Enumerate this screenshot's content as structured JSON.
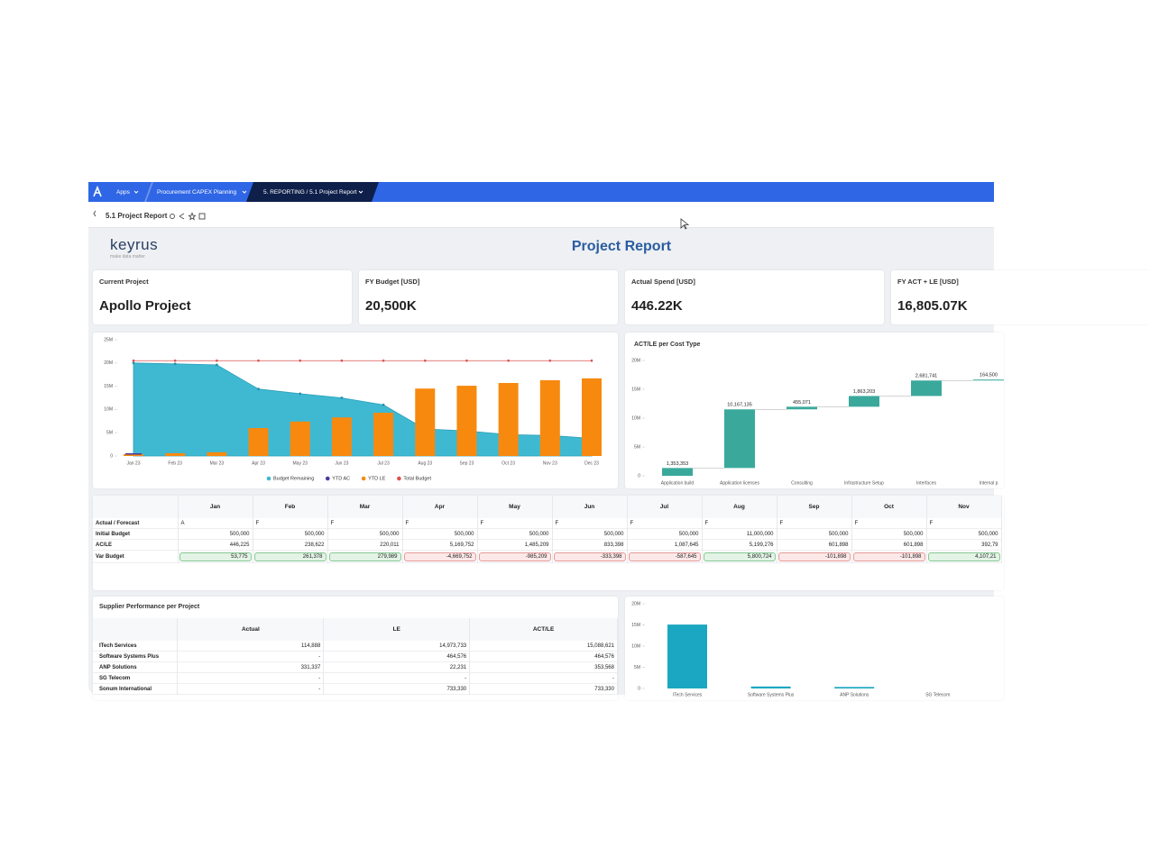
{
  "nav": {
    "items": [
      "Apps",
      "Procurement CAPEX Planning",
      "5. REPORTING / 5.1 Project Report"
    ]
  },
  "toolbar": {
    "title": "5.1 Project Report"
  },
  "header": {
    "logo": "keyrus",
    "tagline": "make data matter",
    "title": "Project Report"
  },
  "kpis": [
    {
      "label": "Current Project",
      "value": "Apollo Project"
    },
    {
      "label": "FY Budget [USD]",
      "value": "20,500K"
    },
    {
      "label": "Actual Spend [USD]",
      "value": "446.22K"
    },
    {
      "label": "FY ACT + LE [USD]",
      "value": "16,805.07K"
    }
  ],
  "budget_chart": {
    "type": "combo",
    "categories": [
      "Jan 23",
      "Feb 23",
      "Mar 23",
      "Apr 23",
      "May 23",
      "Jun 23",
      "Jul 23",
      "Aug 23",
      "Sep 23",
      "Oct 23",
      "Nov 23",
      "Dec 23"
    ],
    "series": [
      {
        "name": "Budget Remaining",
        "kind": "area",
        "color": "#3fb9d2",
        "values": [
          20000000,
          19800000,
          19600000,
          14400000,
          13400000,
          12500000,
          11000000,
          5800000,
          5400000,
          4600000,
          4400000,
          3800000
        ]
      },
      {
        "name": "YTD AC",
        "kind": "line",
        "color": "#4a3aa0",
        "values": [
          446225,
          null,
          null,
          null,
          null,
          null,
          null,
          null,
          null,
          null,
          null,
          null
        ]
      },
      {
        "name": "YTD LE",
        "kind": "bar",
        "color": "#f7890f",
        "values": [
          400000,
          600000,
          800000,
          6000000,
          7400000,
          8300000,
          9300000,
          14500000,
          15100000,
          15700000,
          16300000,
          16700000
        ]
      },
      {
        "name": "Total Budget",
        "kind": "line",
        "color": "#d9534f",
        "values": [
          20500000,
          20500000,
          20500000,
          20500000,
          20500000,
          20500000,
          20500000,
          20500000,
          20500000,
          20500000,
          20500000,
          20500000
        ]
      }
    ],
    "ylim": [
      0,
      25000000
    ],
    "yticks": [
      0,
      {
        "value": 5000000,
        "label": "5M"
      },
      {
        "value": 10000000,
        "label": "10M"
      },
      {
        "value": 15000000,
        "label": "15M"
      },
      {
        "value": 20000000,
        "label": "20M"
      },
      {
        "value": 25000000,
        "label": "25M"
      }
    ]
  },
  "cost_type_chart": {
    "type": "waterfall",
    "title": "ACT/LE per Cost Type",
    "color": "#3aa99b",
    "categories": [
      "Application build",
      "Application licenses",
      "Consulting",
      "Infrastructure Setup",
      "Interfaces",
      "Internal p"
    ],
    "values": [
      1353353,
      10167135,
      455071,
      1863203,
      2681741,
      164500
    ],
    "value_labels": [
      "1,353,353",
      "10,167,135",
      "455,071",
      "1,863,203",
      "2,681,741",
      "164,500"
    ],
    "ylim": [
      0,
      20000000
    ],
    "yticks": [
      0,
      {
        "value": 5000000,
        "label": "5M"
      },
      {
        "value": 10000000,
        "label": "10M"
      },
      {
        "value": 15000000,
        "label": "15M"
      },
      {
        "value": 20000000,
        "label": "20M"
      }
    ]
  },
  "variance_table": {
    "columns": [
      "Jan",
      "Feb",
      "Mar",
      "Apr",
      "May",
      "Jun",
      "Jul",
      "Aug",
      "Sep",
      "Oct",
      "Nov"
    ],
    "rows": [
      {
        "label": "Actual / Forecast",
        "cells": [
          "A",
          "F",
          "F",
          "F",
          "F",
          "F",
          "F",
          "F",
          "F",
          "F",
          "F"
        ]
      },
      {
        "label": "Initial Budget",
        "cells": [
          "500,000",
          "500,000",
          "500,000",
          "500,000",
          "500,000",
          "500,000",
          "500,000",
          "11,000,000",
          "500,000",
          "500,000",
          "500,000"
        ]
      },
      {
        "label": "AC/LE",
        "cells": [
          "446,225",
          "238,622",
          "220,011",
          "5,169,752",
          "1,485,209",
          "833,398",
          "1,087,645",
          "5,199,276",
          "601,898",
          "601,898",
          "392,79"
        ]
      },
      {
        "label": "Var Budget",
        "cells": [
          "53,775",
          "261,378",
          "279,989",
          "-4,669,752",
          "-985,209",
          "-333,398",
          "-587,645",
          "5,800,724",
          "-101,898",
          "-101,898",
          "4,107,21"
        ]
      }
    ]
  },
  "supplier_table": {
    "title": "Supplier Performance per Project",
    "columns": [
      "Actual",
      "LE",
      "ACT/LE"
    ],
    "rows": [
      {
        "label": "ITech Services",
        "cells": [
          "114,888",
          "14,973,733",
          "15,088,621"
        ]
      },
      {
        "label": "Software Systems Plus",
        "cells": [
          "-",
          "464,576",
          "464,576"
        ]
      },
      {
        "label": "ANP Solutions",
        "cells": [
          "331,337",
          "22,231",
          "353,568"
        ]
      },
      {
        "label": "SG Telecom",
        "cells": [
          "-",
          "-",
          "-"
        ]
      },
      {
        "label": "Sonum International",
        "cells": [
          "-",
          "733,330",
          "733,330"
        ]
      }
    ]
  },
  "supplier_chart": {
    "type": "bar",
    "color": "#1ba7c1",
    "categories": [
      "ITech Services",
      "Software Systems Plus",
      "ANP Solutions",
      "SG Telecom"
    ],
    "values": [
      15088621,
      464576,
      353568,
      0
    ],
    "ylim": [
      0,
      20000000
    ],
    "yticks": [
      0,
      {
        "value": 5000000,
        "label": "5M"
      },
      {
        "value": 10000000,
        "label": "10M"
      },
      {
        "value": 15000000,
        "label": "15M"
      },
      {
        "value": 20000000,
        "label": "20M"
      }
    ]
  }
}
